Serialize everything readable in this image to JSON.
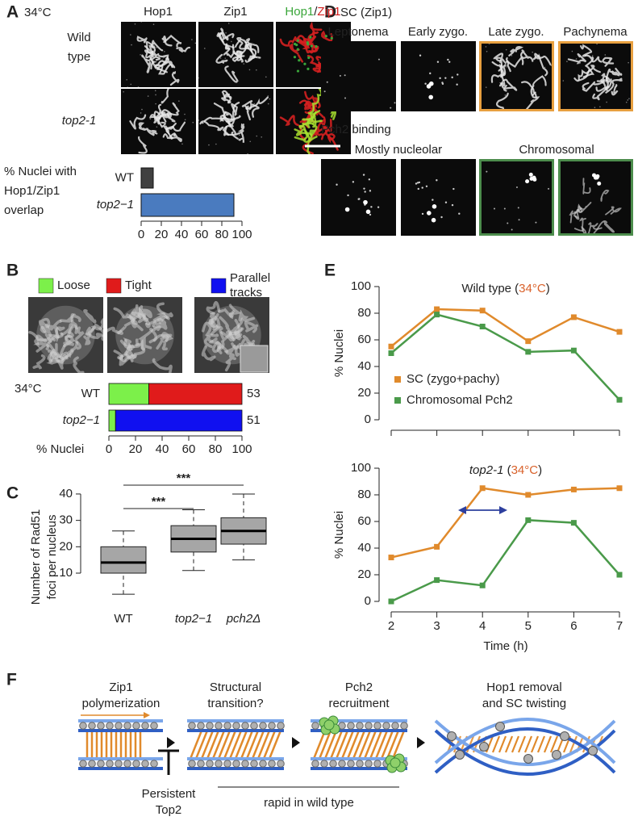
{
  "panels": {
    "A": {
      "letter": "A",
      "condition": "34°C",
      "columns": [
        [
          {
            "text": "Hop1",
            "color": "#222"
          }
        ],
        [
          {
            "text": "Zip1",
            "color": "#222"
          }
        ],
        [
          {
            "text": "Hop1",
            "color": "#3aa63a"
          },
          {
            "text": "/",
            "color": "#222"
          },
          {
            "text": "Zip1",
            "color": "#d42020"
          }
        ]
      ],
      "rows": [
        [
          "Wild",
          "type"
        ],
        [
          "top2-1"
        ]
      ],
      "row_style": [
        "normal",
        "italic"
      ]
    },
    "B": {
      "letter": "B"
    },
    "C": {
      "letter": "C"
    },
    "D": {
      "letter": "D",
      "heading": "SC (Zip1)",
      "stages": [
        "Leptonema",
        "Early zygo.",
        "Late zygo.",
        "Pachynema"
      ],
      "subheading": "Pch2 binding",
      "groups": [
        "Mostly nucleolar",
        "Chromosomal"
      ]
    },
    "E": {
      "letter": "E"
    },
    "F": {
      "letter": "F",
      "steps": [
        [
          "Zip1",
          "polymerization"
        ],
        [
          "Structural",
          "transition?"
        ],
        [
          "Pch2",
          "recruitment"
        ],
        [
          "Hop1 removal",
          "and SC twisting"
        ]
      ],
      "inhibitor": [
        "Persistent",
        "Top2"
      ],
      "bracket": "rapid in wild type"
    }
  },
  "chart_data": [
    {
      "type": "bar",
      "orientation": "horizontal",
      "ylabel": [
        "% Nuclei with",
        "Hop1/Zip1",
        "overlap"
      ],
      "categories": [
        "WT",
        "top2−1"
      ],
      "category_style": [
        "normal",
        "italic"
      ],
      "values": [
        12,
        92
      ],
      "colors": [
        "#404040",
        "#4a7bbf"
      ],
      "xlim": [
        0,
        100
      ],
      "xticks": [
        0,
        20,
        40,
        60,
        80,
        100
      ]
    },
    {
      "type": "stacked_bar",
      "condition": "34°C",
      "categories": [
        "WT",
        "top2−1"
      ],
      "category_style": [
        "normal",
        "italic"
      ],
      "series": [
        {
          "name": "Loose",
          "color": "#7cf04a",
          "values": [
            30,
            5
          ]
        },
        {
          "name": "Tight",
          "color": "#e01b1b",
          "values": [
            70,
            0
          ]
        },
        {
          "name": "Parallel tracks",
          "color": "#1010f0",
          "values": [
            0,
            95
          ]
        }
      ],
      "n": [
        53,
        51
      ],
      "xlabel": "% Nuclei",
      "xlim": [
        0,
        100
      ],
      "xticks": [
        0,
        20,
        40,
        60,
        80,
        100
      ]
    },
    {
      "type": "box",
      "ylabel": [
        "Number of Rad51",
        "foci per nucleus"
      ],
      "categories": [
        "WT",
        "top2−1",
        "pch2Δ"
      ],
      "category_style": [
        "normal",
        "italic",
        "italic"
      ],
      "boxes": [
        {
          "min": 2,
          "q1": 10,
          "median": 14,
          "q3": 20,
          "max": 26
        },
        {
          "min": 11,
          "q1": 18,
          "median": 23,
          "q3": 28,
          "max": 34
        },
        {
          "min": 15,
          "q1": 21,
          "median": 26,
          "q3": 31,
          "max": 40
        }
      ],
      "color": "#a6a6a6",
      "significance": [
        {
          "label": "***",
          "pair": [
            "WT",
            "pch2Δ"
          ]
        },
        {
          "label": "***",
          "pair": [
            "WT",
            "top2−1"
          ]
        }
      ],
      "ylim": [
        0,
        42
      ],
      "yticks": [
        10,
        20,
        30,
        40
      ]
    },
    {
      "type": "line",
      "title_parts": [
        {
          "text": "Wild type (",
          "color": "#222",
          "style": "normal"
        },
        {
          "text": "34°C",
          "color": "#d9622b",
          "style": "normal"
        },
        {
          "text": ")",
          "color": "#222",
          "style": "normal"
        }
      ],
      "ylabel": "% Nuclei",
      "x": [
        2,
        3,
        4,
        5,
        6,
        7
      ],
      "series": [
        {
          "name": "SC (zygo+pachy)",
          "color": "#e08a2c",
          "values": [
            55,
            83,
            82,
            59,
            77,
            66
          ]
        },
        {
          "name": "Chromosomal Pch2",
          "color": "#4a9a4a",
          "values": [
            50,
            79,
            70,
            51,
            52,
            15
          ]
        }
      ],
      "legend": "lower left",
      "xlim": [
        2,
        7
      ],
      "xticks": [
        2,
        3,
        4,
        5,
        6,
        7
      ],
      "show_xtick_labels": false,
      "ylim": [
        0,
        100
      ],
      "yticks": [
        0,
        20,
        40,
        60,
        80,
        100
      ]
    },
    {
      "type": "line",
      "title_parts": [
        {
          "text": "top2-1",
          "color": "#222",
          "style": "italic"
        },
        {
          "text": " (",
          "color": "#222",
          "style": "normal"
        },
        {
          "text": "34°C",
          "color": "#d9622b",
          "style": "normal"
        },
        {
          "text": ")",
          "color": "#222",
          "style": "normal"
        }
      ],
      "ylabel": "% Nuclei",
      "xlabel": "Time (h)",
      "x": [
        2,
        3,
        4,
        5,
        6,
        7
      ],
      "series": [
        {
          "color": "#e08a2c",
          "values": [
            33,
            41,
            85,
            80,
            84,
            85
          ]
        },
        {
          "color": "#4a9a4a",
          "values": [
            0,
            16,
            12,
            61,
            59,
            20
          ]
        }
      ],
      "xlim": [
        2,
        7
      ],
      "xticks": [
        2,
        3,
        4,
        5,
        6,
        7
      ],
      "show_xtick_labels": true,
      "ylim": [
        0,
        100
      ],
      "yticks": [
        0,
        20,
        40,
        60,
        80,
        100
      ]
    }
  ]
}
